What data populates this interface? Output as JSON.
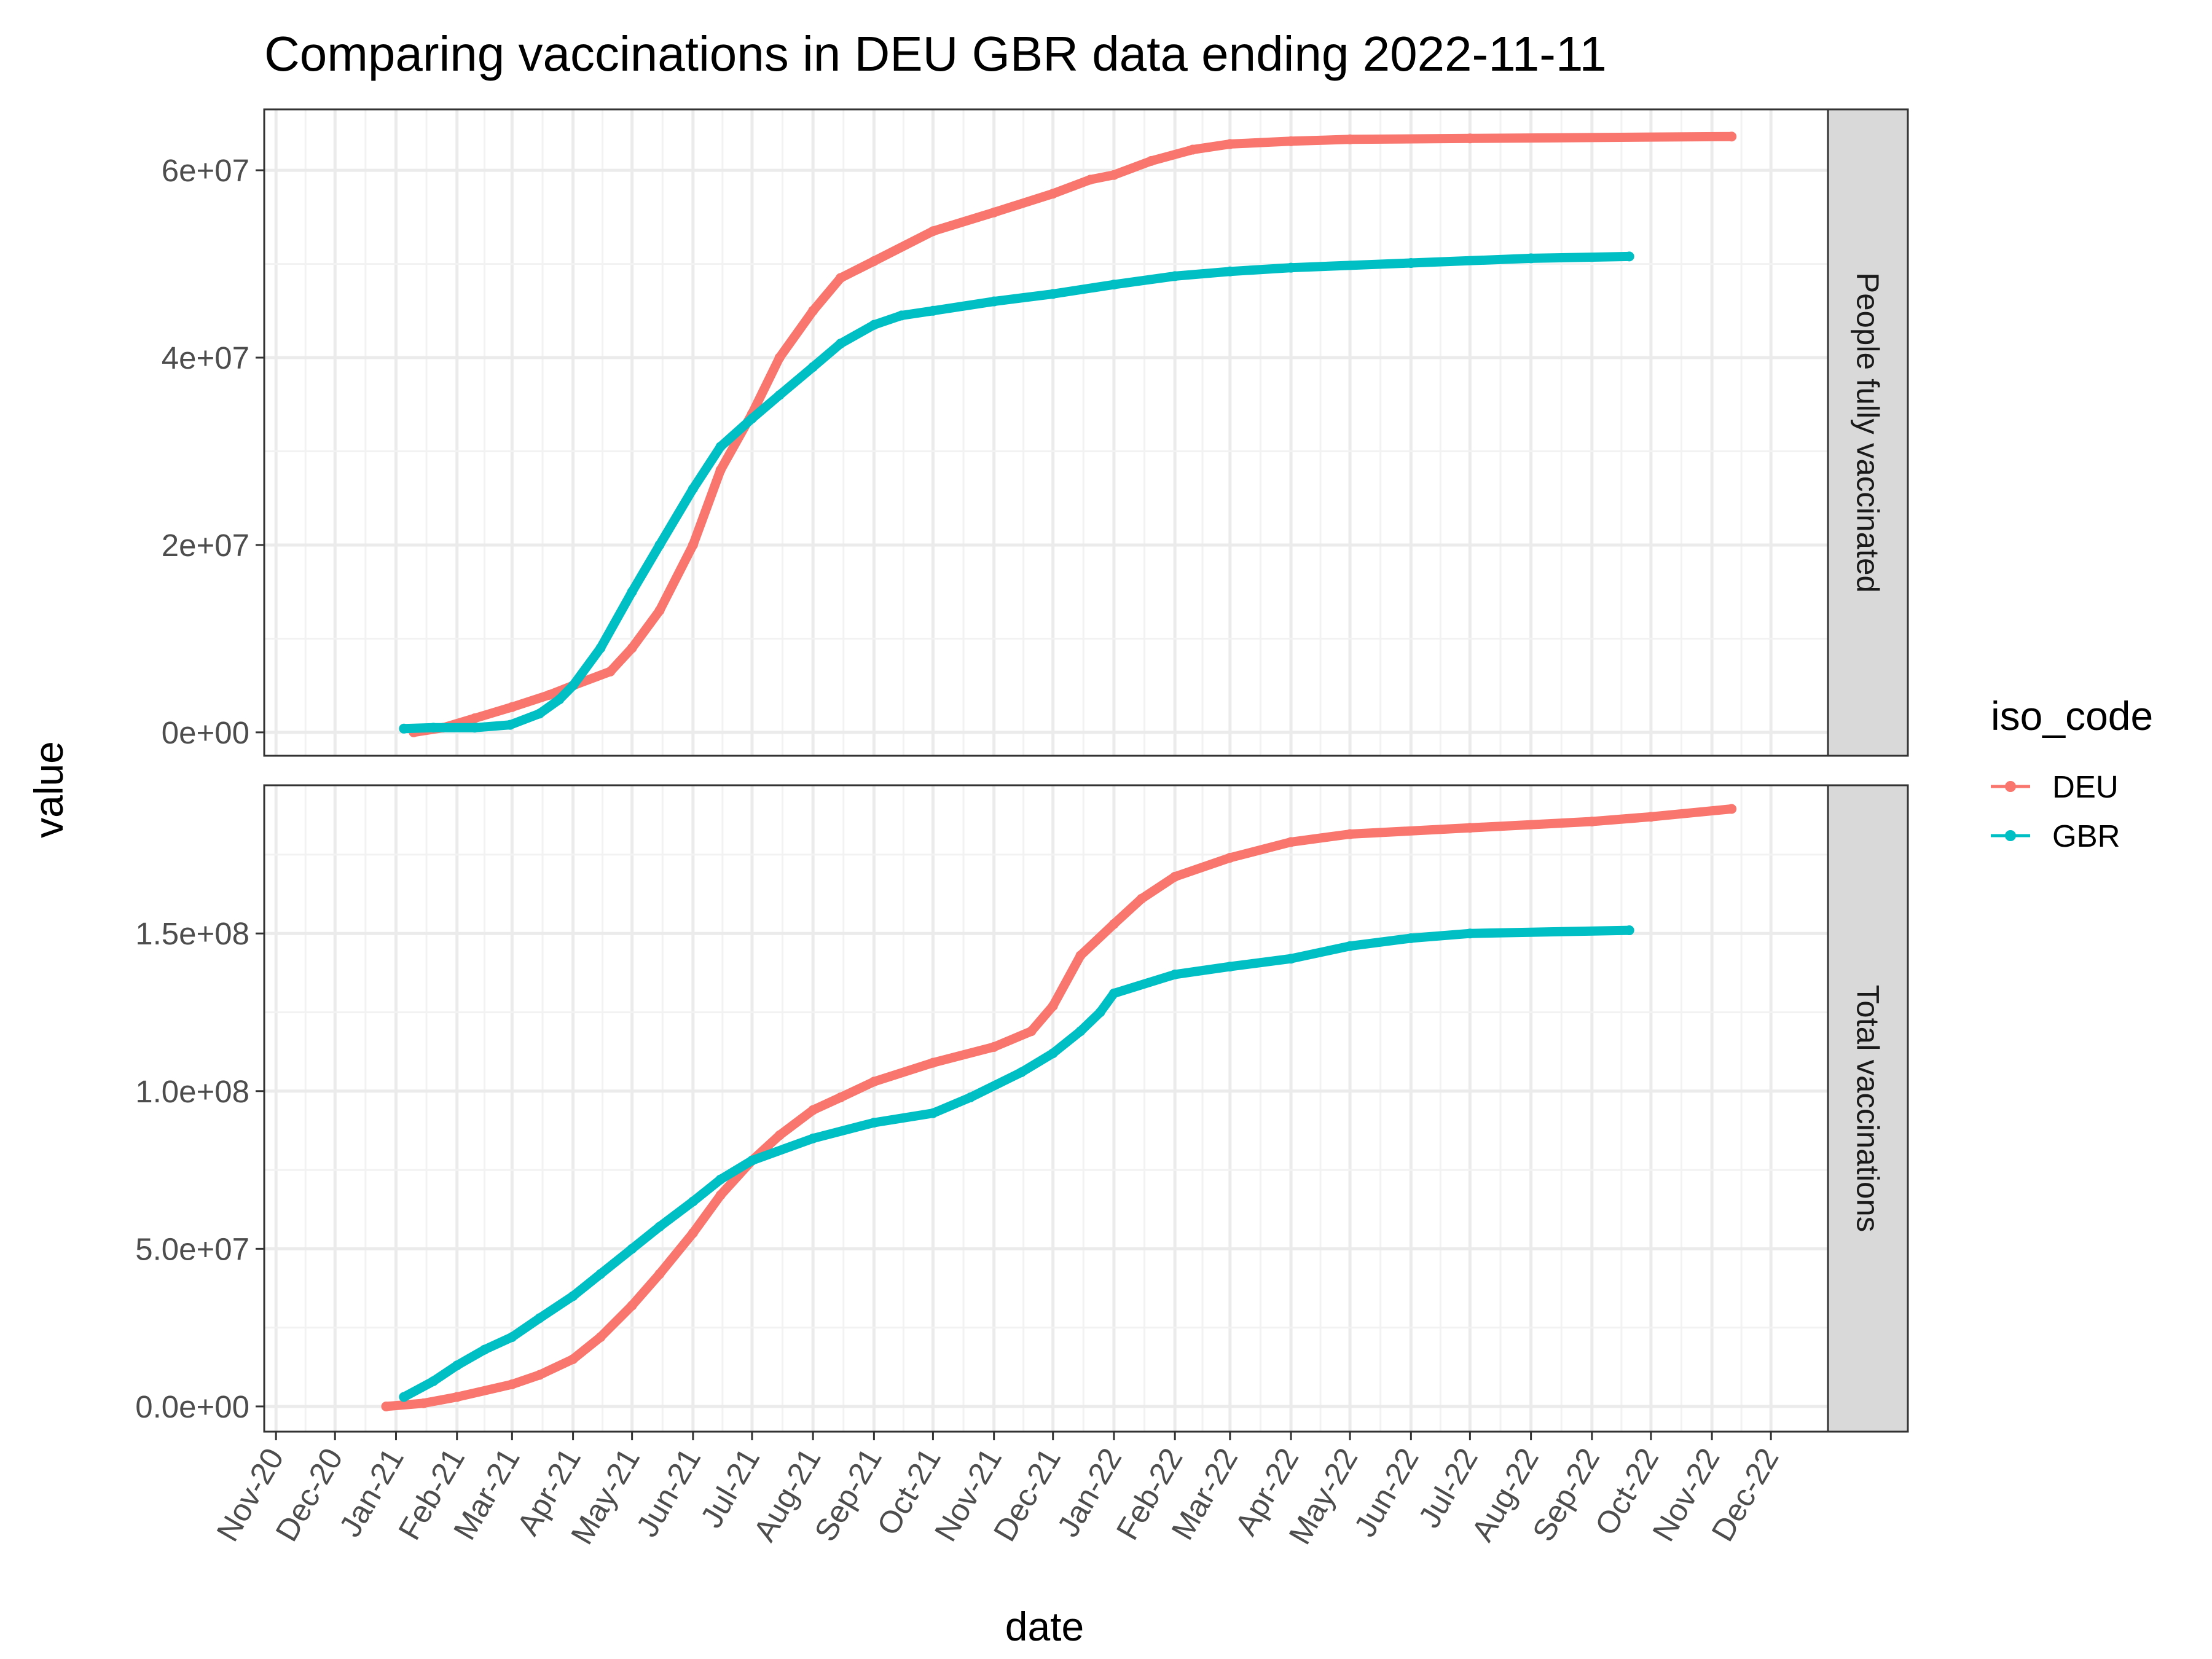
{
  "chart_data": {
    "type": "line",
    "title": "Comparing vaccinations in DEU GBR data ending 2022-11-11",
    "xlabel": "date",
    "ylabel": "value",
    "x_ticks": [
      "2020-11-01",
      "2020-12-01",
      "2021-01-01",
      "2021-02-01",
      "2021-03-01",
      "2021-04-01",
      "2021-05-01",
      "2021-06-01",
      "2021-07-01",
      "2021-08-01",
      "2021-09-01",
      "2021-10-01",
      "2021-11-01",
      "2021-12-01",
      "2022-01-01",
      "2022-02-01",
      "2022-03-01",
      "2022-04-01",
      "2022-05-01",
      "2022-06-01",
      "2022-07-01",
      "2022-08-01",
      "2022-09-01",
      "2022-10-01",
      "2022-11-01",
      "2022-12-01"
    ],
    "x_tick_labels": [
      "Nov-20",
      "Dec-20",
      "Jan-21",
      "Feb-21",
      "Mar-21",
      "Apr-21",
      "May-21",
      "Jun-21",
      "Jul-21",
      "Aug-21",
      "Sep-21",
      "Oct-21",
      "Nov-21",
      "Dec-21",
      "Jan-22",
      "Feb-22",
      "Mar-22",
      "Apr-22",
      "May-22",
      "Jun-22",
      "Jul-22",
      "Aug-22",
      "Sep-22",
      "Oct-22",
      "Nov-22",
      "Dec-22"
    ],
    "xlim": [
      "2020-10-26",
      "2022-12-30"
    ],
    "grid": true,
    "legend": {
      "title": "iso_code",
      "position": "right",
      "entries": [
        {
          "name": "DEU",
          "color": "#F8766D"
        },
        {
          "name": "GBR",
          "color": "#00BFC4"
        }
      ]
    },
    "panels": [
      {
        "strip": "People fully vaccinated",
        "ylim": [
          -2500000,
          66500000
        ],
        "y_ticks": [
          0,
          20000000,
          40000000,
          60000000
        ],
        "y_tick_labels": [
          "0e+00",
          "2e+07",
          "4e+07",
          "6e+07"
        ],
        "series": [
          {
            "name": "DEU",
            "color": "#F8766D",
            "points": [
              [
                "2021-01-10",
                0
              ],
              [
                "2021-01-25",
                500000
              ],
              [
                "2021-02-10",
                1500000
              ],
              [
                "2021-03-01",
                2700000
              ],
              [
                "2021-03-20",
                4000000
              ],
              [
                "2021-04-01",
                5000000
              ],
              [
                "2021-04-20",
                6500000
              ],
              [
                "2021-05-01",
                9000000
              ],
              [
                "2021-05-15",
                13000000
              ],
              [
                "2021-06-01",
                20000000
              ],
              [
                "2021-06-15",
                28000000
              ],
              [
                "2021-07-01",
                34000000
              ],
              [
                "2021-07-15",
                40000000
              ],
              [
                "2021-08-01",
                45000000
              ],
              [
                "2021-08-15",
                48500000
              ],
              [
                "2021-09-01",
                50300000
              ],
              [
                "2021-10-01",
                53500000
              ],
              [
                "2021-11-01",
                55500000
              ],
              [
                "2021-12-01",
                57500000
              ],
              [
                "2021-12-20",
                59000000
              ],
              [
                "2022-01-01",
                59500000
              ],
              [
                "2022-01-20",
                61000000
              ],
              [
                "2022-02-10",
                62200000
              ],
              [
                "2022-03-01",
                62800000
              ],
              [
                "2022-04-01",
                63100000
              ],
              [
                "2022-05-01",
                63300000
              ],
              [
                "2022-07-01",
                63400000
              ],
              [
                "2022-11-11",
                63600000
              ]
            ]
          },
          {
            "name": "GBR",
            "color": "#00BFC4",
            "points": [
              [
                "2021-01-05",
                400000
              ],
              [
                "2021-01-20",
                500000
              ],
              [
                "2021-02-10",
                500000
              ],
              [
                "2021-02-28",
                800000
              ],
              [
                "2021-03-15",
                2000000
              ],
              [
                "2021-03-25",
                3500000
              ],
              [
                "2021-04-01",
                5000000
              ],
              [
                "2021-04-15",
                9000000
              ],
              [
                "2021-05-01",
                15000000
              ],
              [
                "2021-05-15",
                20000000
              ],
              [
                "2021-06-01",
                26000000
              ],
              [
                "2021-06-15",
                30500000
              ],
              [
                "2021-07-01",
                33500000
              ],
              [
                "2021-07-15",
                36000000
              ],
              [
                "2021-08-01",
                39000000
              ],
              [
                "2021-08-15",
                41500000
              ],
              [
                "2021-09-01",
                43500000
              ],
              [
                "2021-09-15",
                44500000
              ],
              [
                "2021-10-01",
                45000000
              ],
              [
                "2021-11-01",
                46000000
              ],
              [
                "2021-12-01",
                46800000
              ],
              [
                "2022-01-01",
                47800000
              ],
              [
                "2022-02-01",
                48700000
              ],
              [
                "2022-03-01",
                49200000
              ],
              [
                "2022-04-01",
                49600000
              ],
              [
                "2022-06-01",
                50100000
              ],
              [
                "2022-08-01",
                50600000
              ],
              [
                "2022-09-20",
                50800000
              ]
            ]
          }
        ]
      },
      {
        "strip": "Total vaccinations",
        "ylim": [
          -8000000,
          197000000
        ],
        "y_ticks": [
          0,
          50000000,
          100000000,
          150000000
        ],
        "y_tick_labels": [
          "0.0e+00",
          "5.0e+07",
          "1.0e+08",
          "1.5e+08"
        ],
        "series": [
          {
            "name": "DEU",
            "color": "#F8766D",
            "points": [
              [
                "2020-12-27",
                0
              ],
              [
                "2021-01-15",
                1000000
              ],
              [
                "2021-02-01",
                3000000
              ],
              [
                "2021-03-01",
                7000000
              ],
              [
                "2021-03-15",
                10000000
              ],
              [
                "2021-04-01",
                15000000
              ],
              [
                "2021-04-15",
                22000000
              ],
              [
                "2021-05-01",
                32000000
              ],
              [
                "2021-05-15",
                42000000
              ],
              [
                "2021-06-01",
                55000000
              ],
              [
                "2021-06-15",
                67000000
              ],
              [
                "2021-07-01",
                78000000
              ],
              [
                "2021-07-15",
                86000000
              ],
              [
                "2021-08-01",
                94000000
              ],
              [
                "2021-08-15",
                98000000
              ],
              [
                "2021-09-01",
                103000000
              ],
              [
                "2021-10-01",
                109000000
              ],
              [
                "2021-11-01",
                114000000
              ],
              [
                "2021-11-20",
                119000000
              ],
              [
                "2021-12-01",
                127000000
              ],
              [
                "2021-12-15",
                143000000
              ],
              [
                "2022-01-01",
                153000000
              ],
              [
                "2022-01-15",
                161000000
              ],
              [
                "2022-02-01",
                168000000
              ],
              [
                "2022-03-01",
                174000000
              ],
              [
                "2022-04-01",
                179000000
              ],
              [
                "2022-05-01",
                181500000
              ],
              [
                "2022-07-01",
                183500000
              ],
              [
                "2022-09-01",
                185500000
              ],
              [
                "2022-10-01",
                187000000
              ],
              [
                "2022-11-11",
                189500000
              ]
            ]
          },
          {
            "name": "GBR",
            "color": "#00BFC4",
            "points": [
              [
                "2021-01-05",
                3000000
              ],
              [
                "2021-01-20",
                8000000
              ],
              [
                "2021-02-01",
                13000000
              ],
              [
                "2021-02-15",
                18000000
              ],
              [
                "2021-03-01",
                22000000
              ],
              [
                "2021-03-15",
                28000000
              ],
              [
                "2021-04-01",
                35000000
              ],
              [
                "2021-04-15",
                42000000
              ],
              [
                "2021-05-01",
                50000000
              ],
              [
                "2021-05-15",
                57000000
              ],
              [
                "2021-06-01",
                65000000
              ],
              [
                "2021-06-15",
                72000000
              ],
              [
                "2021-07-01",
                78000000
              ],
              [
                "2021-08-01",
                85000000
              ],
              [
                "2021-09-01",
                90000000
              ],
              [
                "2021-10-01",
                93000000
              ],
              [
                "2021-10-20",
                98000000
              ],
              [
                "2021-11-15",
                106000000
              ],
              [
                "2021-12-01",
                112000000
              ],
              [
                "2021-12-15",
                119000000
              ],
              [
                "2021-12-25",
                125000000
              ],
              [
                "2022-01-01",
                131000000
              ],
              [
                "2022-02-01",
                137000000
              ],
              [
                "2022-03-01",
                139500000
              ],
              [
                "2022-04-01",
                142000000
              ],
              [
                "2022-05-01",
                146000000
              ],
              [
                "2022-06-01",
                148500000
              ],
              [
                "2022-07-01",
                150000000
              ],
              [
                "2022-09-20",
                151000000
              ]
            ]
          }
        ]
      }
    ]
  }
}
